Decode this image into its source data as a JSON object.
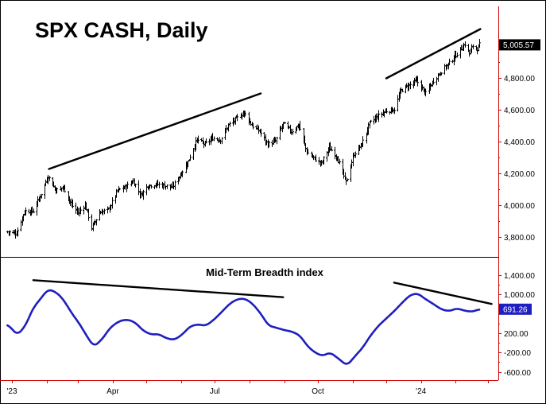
{
  "chart_data": [
    {
      "type": "ohlc",
      "title": "SPX CASH, Daily",
      "ylim": [
        3720,
        5200
      ],
      "yticks": [
        "3,800.00",
        "4,000.00",
        "4,200.00",
        "4,400.00",
        "4,600.00",
        "4,800.00"
      ],
      "ytick_values": [
        3800,
        4000,
        4200,
        4400,
        4600,
        4800
      ],
      "last_value_label": "5,005.57",
      "last_value": 5005.57,
      "xlim": [
        "2022-12-27",
        "2024-03-10"
      ],
      "anchors": [
        [
          "2022-12-28",
          3830
        ],
        [
          "2023-01-05",
          3820
        ],
        [
          "2023-01-12",
          3960
        ],
        [
          "2023-01-20",
          3960
        ],
        [
          "2023-01-27",
          4070
        ],
        [
          "2023-02-02",
          4180
        ],
        [
          "2023-02-09",
          4090
        ],
        [
          "2023-02-16",
          4110
        ],
        [
          "2023-02-23",
          4000
        ],
        [
          "2023-03-01",
          3950
        ],
        [
          "2023-03-07",
          4000
        ],
        [
          "2023-03-13",
          3855
        ],
        [
          "2023-03-20",
          3950
        ],
        [
          "2023-03-28",
          3970
        ],
        [
          "2023-04-05",
          4090
        ],
        [
          "2023-04-12",
          4110
        ],
        [
          "2023-04-19",
          4150
        ],
        [
          "2023-04-26",
          4060
        ],
        [
          "2023-05-02",
          4120
        ],
        [
          "2023-05-10",
          4130
        ],
        [
          "2023-05-17",
          4120
        ],
        [
          "2023-05-24",
          4110
        ],
        [
          "2023-05-31",
          4190
        ],
        [
          "2023-06-07",
          4270
        ],
        [
          "2023-06-15",
          4410
        ],
        [
          "2023-06-22",
          4380
        ],
        [
          "2023-06-29",
          4420
        ],
        [
          "2023-07-06",
          4410
        ],
        [
          "2023-07-13",
          4500
        ],
        [
          "2023-07-20",
          4540
        ],
        [
          "2023-07-27",
          4580
        ],
        [
          "2023-08-03",
          4500
        ],
        [
          "2023-08-10",
          4460
        ],
        [
          "2023-08-17",
          4380
        ],
        [
          "2023-08-24",
          4400
        ],
        [
          "2023-08-31",
          4510
        ],
        [
          "2023-09-07",
          4460
        ],
        [
          "2023-09-14",
          4500
        ],
        [
          "2023-09-21",
          4330
        ],
        [
          "2023-09-28",
          4290
        ],
        [
          "2023-10-04",
          4260
        ],
        [
          "2023-10-11",
          4360
        ],
        [
          "2023-10-18",
          4300
        ],
        [
          "2023-10-26",
          4140
        ],
        [
          "2023-11-02",
          4320
        ],
        [
          "2023-11-09",
          4380
        ],
        [
          "2023-11-16",
          4510
        ],
        [
          "2023-11-24",
          4560
        ],
        [
          "2023-12-01",
          4590
        ],
        [
          "2023-12-08",
          4600
        ],
        [
          "2023-12-14",
          4720
        ],
        [
          "2023-12-21",
          4750
        ],
        [
          "2023-12-28",
          4780
        ],
        [
          "2024-01-05",
          4700
        ],
        [
          "2024-01-12",
          4780
        ],
        [
          "2024-01-19",
          4840
        ],
        [
          "2024-01-26",
          4890
        ],
        [
          "2024-02-02",
          4950
        ],
        [
          "2024-02-09",
          5010
        ],
        [
          "2024-02-13",
          4950
        ],
        [
          "2024-02-16",
          5000
        ],
        [
          "2024-02-20",
          4980
        ],
        [
          "2024-02-22",
          5005.57
        ]
      ],
      "trendlines": [
        {
          "from": [
            "2023-02-03",
            4225
          ],
          "to": [
            "2023-08-11",
            4700
          ]
        },
        {
          "from": [
            "2023-12-01",
            4795
          ],
          "to": [
            "2024-02-23",
            5105
          ]
        }
      ]
    },
    {
      "type": "line",
      "title": "Mid-Term Breadth index",
      "color": "#1f1fbf",
      "ylim": [
        -780,
        1650
      ],
      "yticks": [
        "-600.00",
        "-200.00",
        "200.00",
        "1,000.00",
        "1,400.00"
      ],
      "ytick_values": [
        -600,
        -200,
        200,
        1000,
        1400
      ],
      "last_value_label": "691.26",
      "last_value": 691.26,
      "anchors": [
        [
          "2022-12-28",
          380
        ],
        [
          "2023-01-06",
          160
        ],
        [
          "2023-01-13",
          350
        ],
        [
          "2023-01-20",
          720
        ],
        [
          "2023-01-28",
          950
        ],
        [
          "2023-02-02",
          1100
        ],
        [
          "2023-02-09",
          1050
        ],
        [
          "2023-02-16",
          890
        ],
        [
          "2023-02-23",
          620
        ],
        [
          "2023-03-02",
          400
        ],
        [
          "2023-03-09",
          130
        ],
        [
          "2023-03-15",
          -80
        ],
        [
          "2023-03-22",
          60
        ],
        [
          "2023-03-30",
          320
        ],
        [
          "2023-04-07",
          450
        ],
        [
          "2023-04-14",
          480
        ],
        [
          "2023-04-21",
          420
        ],
        [
          "2023-04-28",
          250
        ],
        [
          "2023-05-05",
          170
        ],
        [
          "2023-05-12",
          180
        ],
        [
          "2023-05-19",
          90
        ],
        [
          "2023-05-26",
          60
        ],
        [
          "2023-06-02",
          170
        ],
        [
          "2023-06-09",
          340
        ],
        [
          "2023-06-16",
          380
        ],
        [
          "2023-06-23",
          350
        ],
        [
          "2023-06-30",
          470
        ],
        [
          "2023-07-07",
          630
        ],
        [
          "2023-07-14",
          800
        ],
        [
          "2023-07-21",
          900
        ],
        [
          "2023-07-28",
          910
        ],
        [
          "2023-08-04",
          800
        ],
        [
          "2023-08-11",
          600
        ],
        [
          "2023-08-18",
          350
        ],
        [
          "2023-08-25",
          310
        ],
        [
          "2023-09-01",
          260
        ],
        [
          "2023-09-08",
          230
        ],
        [
          "2023-09-15",
          150
        ],
        [
          "2023-09-22",
          -80
        ],
        [
          "2023-09-29",
          -210
        ],
        [
          "2023-10-05",
          -270
        ],
        [
          "2023-10-12",
          -200
        ],
        [
          "2023-10-19",
          -320
        ],
        [
          "2023-10-27",
          -470
        ],
        [
          "2023-11-03",
          -280
        ],
        [
          "2023-11-10",
          -100
        ],
        [
          "2023-11-17",
          150
        ],
        [
          "2023-11-24",
          350
        ],
        [
          "2023-12-01",
          500
        ],
        [
          "2023-12-08",
          650
        ],
        [
          "2023-12-15",
          820
        ],
        [
          "2023-12-22",
          980
        ],
        [
          "2023-12-29",
          1020
        ],
        [
          "2024-01-05",
          900
        ],
        [
          "2024-01-12",
          800
        ],
        [
          "2024-01-19",
          690
        ],
        [
          "2024-01-26",
          650
        ],
        [
          "2024-02-02",
          710
        ],
        [
          "2024-02-09",
          660
        ],
        [
          "2024-02-16",
          640
        ],
        [
          "2024-02-22",
          691.26
        ]
      ],
      "trendlines": [
        {
          "from": [
            "2023-01-20",
            1290
          ],
          "to": [
            "2023-08-31",
            940
          ]
        },
        {
          "from": [
            "2023-12-08",
            1240
          ],
          "to": [
            "2024-03-04",
            800
          ]
        }
      ]
    }
  ],
  "x_axis": {
    "labels": [
      {
        "text": "'23",
        "date": "2023-01-01"
      },
      {
        "text": "Apr",
        "date": "2023-04-01"
      },
      {
        "text": "Jul",
        "date": "2023-07-01"
      },
      {
        "text": "Oct",
        "date": "2023-10-01"
      },
      {
        "text": "'24",
        "date": "2024-01-01"
      }
    ],
    "ticks": [
      "2023-01-01",
      "2023-02-01",
      "2023-03-01",
      "2023-04-01",
      "2023-05-01",
      "2023-06-01",
      "2023-07-01",
      "2023-08-01",
      "2023-09-01",
      "2023-10-01",
      "2023-11-01",
      "2023-12-01",
      "2024-01-01",
      "2024-02-01",
      "2024-03-01"
    ]
  },
  "colors": {
    "axis_line": "#d20000",
    "bars": "#000000",
    "breadth_line": "#1f1fbf",
    "price_badge": "#000000",
    "breadth_badge": "#1f1fbf"
  }
}
